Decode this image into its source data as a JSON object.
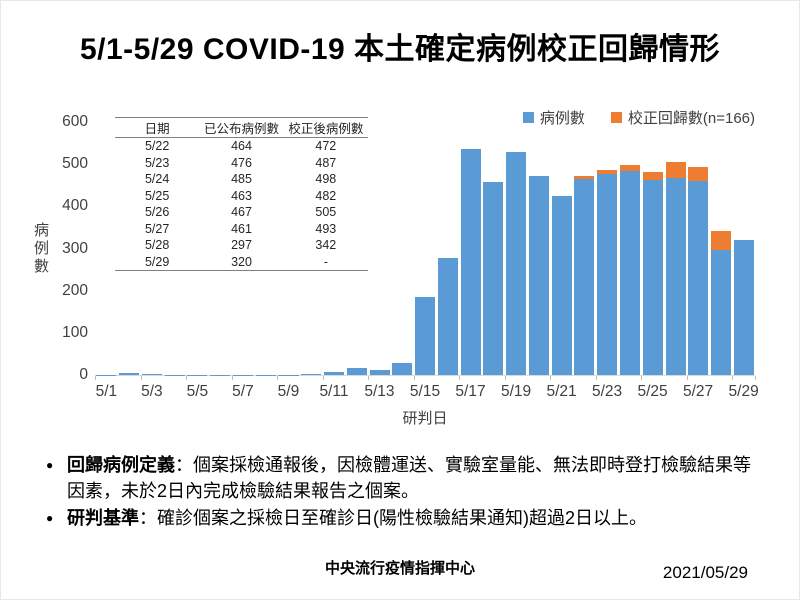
{
  "title": {
    "text": "5/1-5/29 COVID-19 本土確定病例校正回歸情形"
  },
  "colors": {
    "bar_blue": "#5B9BD5",
    "bar_orange": "#ED7D31",
    "axis_line": "#D9D9D9",
    "tick": "#BFBFBF",
    "axis_text": "#404040",
    "table_rule": "#808080"
  },
  "chart_data": {
    "type": "bar",
    "stacked": true,
    "title": "",
    "xlabel": "研判日",
    "ylabel": "病例數",
    "ylim": [
      0,
      600
    ],
    "ytick_step": 100,
    "xtick_every": 2,
    "grid": false,
    "legend_position": "top-right",
    "x": [
      "5/1",
      "5/2",
      "5/3",
      "5/4",
      "5/5",
      "5/6",
      "5/7",
      "5/8",
      "5/9",
      "5/10",
      "5/11",
      "5/12",
      "5/13",
      "5/14",
      "5/15",
      "5/16",
      "5/17",
      "5/18",
      "5/19",
      "5/20",
      "5/21",
      "5/22",
      "5/23",
      "5/24",
      "5/25",
      "5/26",
      "5/27",
      "5/28",
      "5/29"
    ],
    "series": [
      {
        "name": "病例數",
        "color": "#5B9BD5",
        "values": [
          1,
          5,
          3,
          1,
          1,
          1,
          1,
          1,
          1,
          3,
          7,
          16,
          13,
          29,
          185,
          278,
          535,
          458,
          529,
          471,
          424,
          464,
          476,
          485,
          463,
          467,
          461,
          297,
          320
        ]
      },
      {
        "name": "校正回歸數(n=166)",
        "color": "#ED7D31",
        "values": [
          0,
          0,
          0,
          0,
          0,
          0,
          0,
          0,
          0,
          0,
          0,
          0,
          0,
          0,
          0,
          0,
          0,
          0,
          0,
          0,
          0,
          8,
          11,
          13,
          19,
          38,
          32,
          45,
          0
        ]
      }
    ]
  },
  "inset_table": {
    "headers": [
      "日期",
      "已公布病例數",
      "校正後病例數"
    ],
    "rows": [
      [
        "5/22",
        "464",
        "472"
      ],
      [
        "5/23",
        "476",
        "487"
      ],
      [
        "5/24",
        "485",
        "498"
      ],
      [
        "5/25",
        "463",
        "482"
      ],
      [
        "5/26",
        "467",
        "505"
      ],
      [
        "5/27",
        "461",
        "493"
      ],
      [
        "5/28",
        "297",
        "342"
      ],
      [
        "5/29",
        "320",
        "-"
      ]
    ]
  },
  "notes": {
    "bullet_glyph": "●",
    "items": [
      {
        "label": "回歸病例定義",
        "text": "：個案採檢通報後，因檢體運送、實驗室量能、無法即時登打檢驗結果等因素，未於2日內完成檢驗結果報告之個案。"
      },
      {
        "label": "研判基準",
        "text": "：確診個案之採檢日至確診日(陽性檢驗結果通知)超過2日以上。"
      }
    ]
  },
  "footer": {
    "org": "中央流行疫情指揮中心",
    "date": "2021/05/29"
  }
}
